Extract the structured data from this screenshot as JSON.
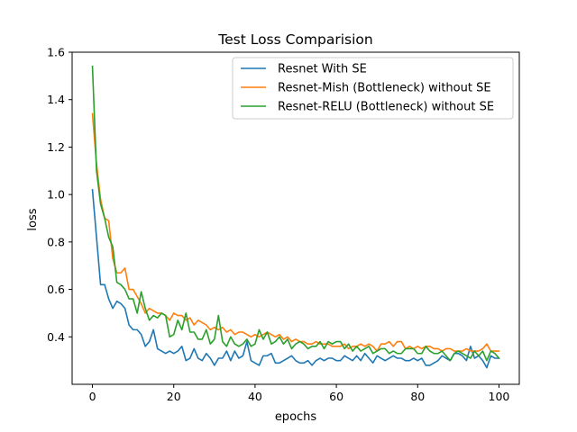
{
  "chart_data": {
    "type": "line",
    "title": "Test Loss Comparision",
    "xlabel": "epochs",
    "ylabel": "loss",
    "xlim": [
      -5,
      105
    ],
    "ylim": [
      0.2,
      1.6
    ],
    "xticks": [
      0,
      20,
      40,
      60,
      80,
      100
    ],
    "yticks": [
      0.4,
      0.6,
      0.8,
      1.0,
      1.2,
      1.4,
      1.6
    ],
    "ytick_labels": [
      "0.4",
      "0.6",
      "0.8",
      "1.0",
      "1.2",
      "1.4",
      "1.6"
    ],
    "grid": false,
    "legend_position": "top-right",
    "series": [
      {
        "name": "Resnet With SE",
        "color": "#1f77b4",
        "values": [
          1.02,
          0.82,
          0.62,
          0.62,
          0.56,
          0.52,
          0.55,
          0.54,
          0.52,
          0.45,
          0.43,
          0.43,
          0.41,
          0.36,
          0.38,
          0.43,
          0.35,
          0.34,
          0.33,
          0.34,
          0.33,
          0.34,
          0.36,
          0.3,
          0.31,
          0.35,
          0.31,
          0.3,
          0.33,
          0.31,
          0.28,
          0.31,
          0.31,
          0.34,
          0.3,
          0.34,
          0.31,
          0.32,
          0.38,
          0.3,
          0.29,
          0.28,
          0.32,
          0.32,
          0.33,
          0.29,
          0.29,
          0.3,
          0.31,
          0.32,
          0.3,
          0.29,
          0.29,
          0.3,
          0.28,
          0.3,
          0.31,
          0.3,
          0.31,
          0.31,
          0.3,
          0.3,
          0.32,
          0.31,
          0.3,
          0.32,
          0.3,
          0.33,
          0.31,
          0.29,
          0.32,
          0.31,
          0.3,
          0.31,
          0.32,
          0.31,
          0.31,
          0.3,
          0.3,
          0.31,
          0.3,
          0.31,
          0.28,
          0.28,
          0.29,
          0.3,
          0.32,
          0.31,
          0.3,
          0.33,
          0.33,
          0.32,
          0.3,
          0.36,
          0.31,
          0.32,
          0.3,
          0.27,
          0.32,
          0.31,
          0.31
        ]
      },
      {
        "name": "Resnet-Mish (Bottleneck) without SE",
        "color": "#ff7f0e",
        "values": [
          1.34,
          1.13,
          0.98,
          0.9,
          0.89,
          0.73,
          0.67,
          0.67,
          0.69,
          0.6,
          0.6,
          0.57,
          0.54,
          0.5,
          0.52,
          0.51,
          0.5,
          0.5,
          0.49,
          0.47,
          0.5,
          0.49,
          0.49,
          0.47,
          0.48,
          0.45,
          0.47,
          0.46,
          0.45,
          0.43,
          0.44,
          0.43,
          0.44,
          0.42,
          0.43,
          0.41,
          0.42,
          0.42,
          0.41,
          0.4,
          0.41,
          0.4,
          0.41,
          0.42,
          0.41,
          0.4,
          0.41,
          0.39,
          0.4,
          0.38,
          0.39,
          0.38,
          0.38,
          0.37,
          0.37,
          0.38,
          0.37,
          0.37,
          0.37,
          0.36,
          0.36,
          0.36,
          0.37,
          0.35,
          0.36,
          0.36,
          0.37,
          0.36,
          0.37,
          0.36,
          0.34,
          0.37,
          0.37,
          0.38,
          0.36,
          0.38,
          0.38,
          0.35,
          0.36,
          0.35,
          0.36,
          0.35,
          0.36,
          0.36,
          0.35,
          0.35,
          0.34,
          0.35,
          0.35,
          0.34,
          0.34,
          0.34,
          0.35,
          0.34,
          0.34,
          0.34,
          0.35,
          0.37,
          0.34,
          0.34,
          0.34
        ]
      },
      {
        "name": "Resnet-RELU (Bottleneck) without SE",
        "color": "#2ca02c",
        "values": [
          1.54,
          1.1,
          0.96,
          0.9,
          0.82,
          0.78,
          0.63,
          0.62,
          0.6,
          0.56,
          0.56,
          0.5,
          0.59,
          0.52,
          0.47,
          0.49,
          0.48,
          0.5,
          0.49,
          0.4,
          0.41,
          0.47,
          0.43,
          0.5,
          0.42,
          0.42,
          0.39,
          0.39,
          0.43,
          0.37,
          0.39,
          0.49,
          0.38,
          0.36,
          0.4,
          0.37,
          0.36,
          0.37,
          0.39,
          0.36,
          0.37,
          0.43,
          0.39,
          0.42,
          0.37,
          0.38,
          0.4,
          0.37,
          0.39,
          0.35,
          0.37,
          0.38,
          0.37,
          0.35,
          0.36,
          0.36,
          0.38,
          0.35,
          0.38,
          0.37,
          0.38,
          0.38,
          0.35,
          0.37,
          0.34,
          0.36,
          0.34,
          0.35,
          0.36,
          0.33,
          0.34,
          0.35,
          0.35,
          0.33,
          0.34,
          0.33,
          0.33,
          0.35,
          0.35,
          0.35,
          0.33,
          0.33,
          0.36,
          0.34,
          0.33,
          0.33,
          0.34,
          0.32,
          0.3,
          0.33,
          0.34,
          0.33,
          0.32,
          0.31,
          0.34,
          0.32,
          0.34,
          0.3,
          0.34,
          0.33,
          0.31
        ]
      }
    ]
  }
}
